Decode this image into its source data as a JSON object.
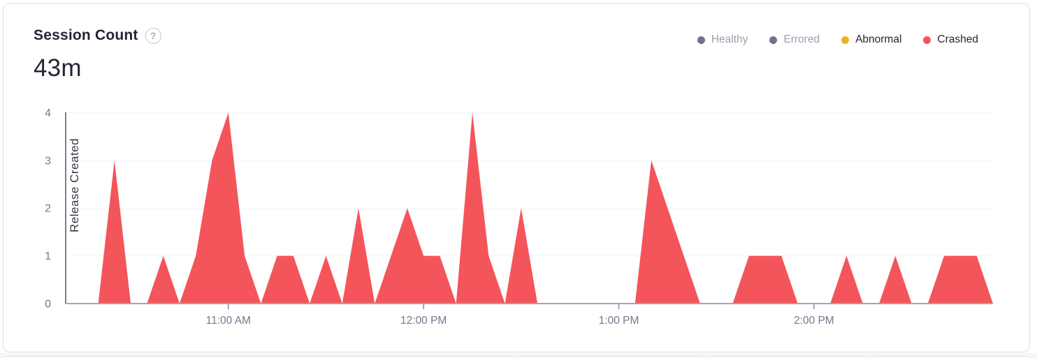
{
  "card": {
    "title": "Session Count",
    "help_icon": "?",
    "big_number": "43m"
  },
  "legend": {
    "position": "top-right",
    "items": [
      {
        "label": "Healthy",
        "color": "#796d8a",
        "active": false
      },
      {
        "label": "Errored",
        "color": "#796d8a",
        "active": false
      },
      {
        "label": "Abnormal",
        "color": "#f0b11c",
        "active": true
      },
      {
        "label": "Crashed",
        "color": "#f4555a",
        "active": true
      }
    ]
  },
  "chart_data": {
    "type": "area",
    "title": "Session Count",
    "total_label": "43m",
    "xlabel": "",
    "ylabel": "",
    "ylim": [
      0,
      4
    ],
    "yticks": [
      0,
      1,
      2,
      3,
      4
    ],
    "grid": "horizontal",
    "legend_position": "top-right",
    "xticks": [
      "11:00 AM",
      "12:00 PM",
      "1:00 PM",
      "2:00 PM"
    ],
    "xtick_indices": [
      10,
      22,
      34,
      46
    ],
    "x_interval_minutes": 5,
    "x": [
      "10:10 AM",
      "10:15 AM",
      "10:20 AM",
      "10:25 AM",
      "10:30 AM",
      "10:35 AM",
      "10:40 AM",
      "10:45 AM",
      "10:50 AM",
      "10:55 AM",
      "11:00 AM",
      "11:05 AM",
      "11:10 AM",
      "11:15 AM",
      "11:20 AM",
      "11:25 AM",
      "11:30 AM",
      "11:35 AM",
      "11:40 AM",
      "11:45 AM",
      "11:50 AM",
      "11:55 AM",
      "12:00 PM",
      "12:05 PM",
      "12:10 PM",
      "12:15 PM",
      "12:20 PM",
      "12:25 PM",
      "12:30 PM",
      "12:35 PM",
      "12:40 PM",
      "12:45 PM",
      "12:50 PM",
      "12:55 PM",
      "1:00 PM",
      "1:05 PM",
      "1:10 PM",
      "1:15 PM",
      "1:20 PM",
      "1:25 PM",
      "1:30 PM",
      "1:35 PM",
      "1:40 PM",
      "1:45 PM",
      "1:50 PM",
      "1:55 PM",
      "2:00 PM",
      "2:05 PM",
      "2:10 PM",
      "2:15 PM",
      "2:20 PM",
      "2:25 PM",
      "2:30 PM",
      "2:35 PM",
      "2:40 PM",
      "2:45 PM",
      "2:50 PM",
      "2:55 PM"
    ],
    "series": [
      {
        "name": "Crashed",
        "color": "#f4555a",
        "values": [
          0,
          0,
          0,
          3,
          0,
          0,
          1,
          0,
          1,
          3,
          4,
          1,
          0,
          1,
          1,
          0,
          1,
          0,
          2,
          0,
          1,
          2,
          1,
          1,
          0,
          4,
          1,
          0,
          2,
          0,
          0,
          0,
          0,
          0,
          0,
          0,
          3,
          2,
          1,
          0,
          0,
          0,
          1,
          1,
          1,
          0,
          0,
          0,
          1,
          0,
          0,
          1,
          0,
          0,
          1,
          1,
          1,
          0
        ]
      }
    ],
    "annotations": [
      {
        "type": "vertical-line",
        "label": "Release Created",
        "x": "10:10 AM"
      }
    ]
  },
  "colors": {
    "crashed": "#f4555a",
    "abnormal": "#f0b11c",
    "healthy": "#796d8a",
    "errored": "#796d8a",
    "text_primary": "#2b2233",
    "text_axis": "#7b7490",
    "axis_line": "#a9a1b5",
    "grid_line": "#f4f2f7",
    "card_border": "#e0dce5"
  }
}
